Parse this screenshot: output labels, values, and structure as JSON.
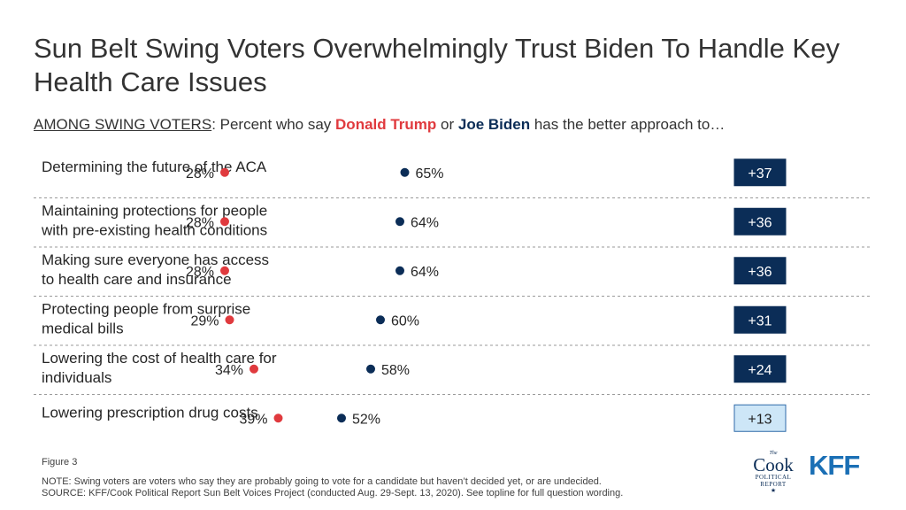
{
  "title": "Sun Belt Swing Voters Overwhelmingly Trust Biden To Handle Key Health Care Issues",
  "subtitle": {
    "prefix": "AMONG SWING VOTERS",
    "mid": ": Percent who say ",
    "trump": "Donald Trump",
    "or": " or ",
    "biden": "Joe Biden",
    "suffix": " has the better approach to…"
  },
  "colors": {
    "trump": "#e03a3e",
    "biden": "#0b2d57",
    "diff_dark": "#0b2d57",
    "diff_light": "#cde6f7"
  },
  "chart_data": {
    "type": "dot",
    "series": [
      {
        "name": "Donald Trump",
        "values": [
          28,
          28,
          28,
          29,
          34,
          39
        ]
      },
      {
        "name": "Joe Biden",
        "values": [
          65,
          64,
          64,
          60,
          58,
          52
        ]
      }
    ],
    "rows": [
      {
        "label": [
          "Determining the future of the ACA"
        ],
        "trump": 28,
        "biden": 65,
        "diff": "+37"
      },
      {
        "label": [
          "Maintaining protections for people",
          "with pre-existing health conditions"
        ],
        "trump": 28,
        "biden": 64,
        "diff": "+36"
      },
      {
        "label": [
          "Making sure everyone has access",
          "to health care and insurance"
        ],
        "trump": 28,
        "biden": 64,
        "diff": "+36"
      },
      {
        "label": [
          "Protecting people from surprise",
          "medical bills"
        ],
        "trump": 29,
        "biden": 60,
        "diff": "+31"
      },
      {
        "label": [
          "Lowering the cost of health care for",
          "individuals"
        ],
        "trump": 34,
        "biden": 58,
        "diff": "+24"
      },
      {
        "label": [
          "Lowering prescription drug costs"
        ],
        "trump": 39,
        "biden": 52,
        "diff": "+13"
      }
    ],
    "value_suffix": "%"
  },
  "footer": {
    "figure": "Figure 3",
    "note": "NOTE: Swing voters are voters who say they are probably going to vote for a candidate but haven’t decided yet, or are undecided.",
    "source": "SOURCE: KFF/Cook Political Report Sun Belt Voices Project (conducted Aug. 29-Sept. 13, 2020). See topline for full question wording."
  },
  "logos": {
    "cook_the": "The",
    "cook_name": "Cook",
    "cook_sub1": "POLITICAL",
    "cook_sub2": "REPORT",
    "kff": "KFF"
  }
}
